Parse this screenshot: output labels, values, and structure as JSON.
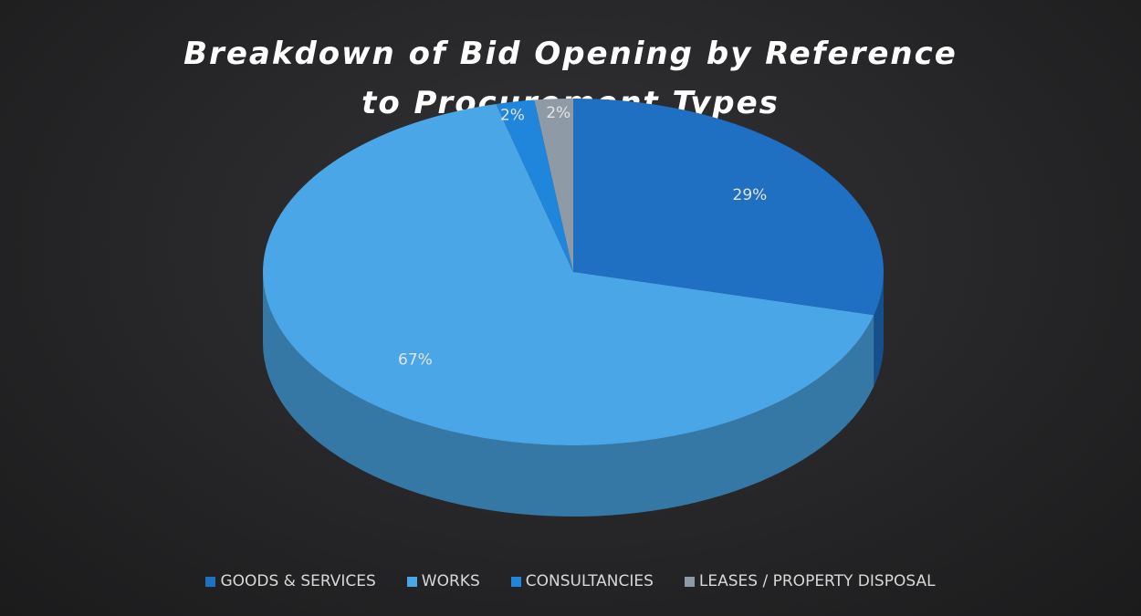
{
  "chart_data": {
    "type": "pie",
    "title": "Breakdown of Bid Opening by Reference to Procurement Types",
    "categories": [
      "GOODS & SERVICES",
      "WORKS",
      "CONSULTANCIES",
      "LEASES / PROPERTY DISPOSAL"
    ],
    "values": [
      29,
      67,
      2,
      2
    ],
    "value_labels": [
      "29%",
      "67%",
      "2%",
      "2%"
    ],
    "colors": [
      "#1f6fc2",
      "#4aa6e6",
      "#1f86dc",
      "#8e9aa6"
    ],
    "legend": "bottom"
  }
}
